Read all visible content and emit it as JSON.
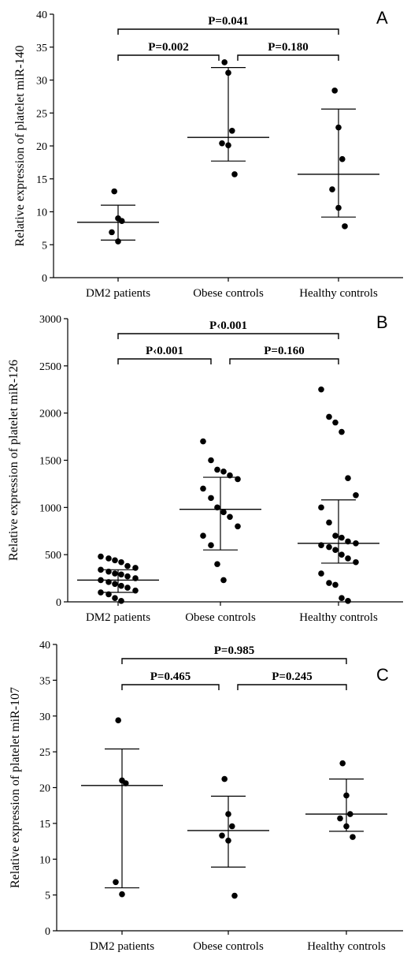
{
  "chart_data": [
    {
      "type": "scatter",
      "panel": "A",
      "ylabel": "Relative expression of platelet miR-140",
      "ylim": [
        0,
        40
      ],
      "yticks": [
        0,
        5,
        10,
        15,
        20,
        25,
        30,
        35,
        40
      ],
      "categories": [
        "DM2 patients",
        "Obese controls",
        "Healthy controls"
      ],
      "points": [
        [
          13.1,
          9.0,
          8.6,
          6.9,
          5.5
        ],
        [
          32.7,
          31.1,
          22.3,
          20.4,
          20.1,
          15.7
        ],
        [
          28.4,
          22.8,
          18.0,
          13.4,
          10.6,
          7.8
        ]
      ],
      "summary": [
        {
          "median": 8.4,
          "low": 5.7,
          "high": 11.0
        },
        {
          "median": 21.3,
          "low": 17.7,
          "high": 31.9
        },
        {
          "median": 15.7,
          "low": 9.2,
          "high": 25.6
        }
      ],
      "comparisons": [
        {
          "from": 0,
          "to": 1,
          "label": "P=0.002",
          "level": 1
        },
        {
          "from": 1,
          "to": 2,
          "label": "P=0.180",
          "level": 1
        },
        {
          "from": 0,
          "to": 2,
          "label": "P=0.041",
          "level": 2
        }
      ]
    },
    {
      "type": "scatter",
      "panel": "B",
      "ylabel": "Relative expression of platelet miR-126",
      "ylim": [
        0,
        3000
      ],
      "yticks": [
        0,
        500,
        1000,
        1500,
        2000,
        2500,
        3000
      ],
      "categories": [
        "DM2 patients",
        "Obese controls",
        "Healthy controls"
      ],
      "points": [
        [
          480,
          460,
          440,
          420,
          380,
          360,
          340,
          320,
          300,
          290,
          270,
          250,
          230,
          210,
          190,
          170,
          150,
          120,
          100,
          80,
          40,
          10
        ],
        [
          1700,
          1500,
          1400,
          1380,
          1340,
          1300,
          1200,
          1100,
          1000,
          950,
          900,
          800,
          700,
          600,
          400,
          230
        ],
        [
          2250,
          1960,
          1900,
          1800,
          1310,
          1130,
          1000,
          840,
          700,
          680,
          640,
          620,
          600,
          580,
          550,
          500,
          460,
          420,
          300,
          200,
          180,
          40,
          10
        ]
      ],
      "summary": [
        {
          "median": 230,
          "low": 100,
          "high": 340
        },
        {
          "median": 980,
          "low": 550,
          "high": 1320
        },
        {
          "median": 620,
          "low": 410,
          "high": 1080
        }
      ],
      "comparisons": [
        {
          "from": 0,
          "to": 1,
          "label": "P‹0.001",
          "level": 1
        },
        {
          "from": 1,
          "to": 2,
          "label": "P=0.160",
          "level": 1
        },
        {
          "from": 0,
          "to": 2,
          "label": "P‹0.001",
          "level": 2
        }
      ]
    },
    {
      "type": "scatter",
      "panel": "C",
      "ylabel": "Relative expression of platelet miR-107",
      "ylim": [
        0,
        40
      ],
      "yticks": [
        0,
        5,
        10,
        15,
        20,
        25,
        30,
        35,
        40
      ],
      "categories": [
        "DM2 patients",
        "Obese controls",
        "Healthy controls"
      ],
      "points": [
        [
          29.4,
          21.0,
          20.6,
          6.8,
          5.1
        ],
        [
          21.2,
          16.3,
          14.6,
          13.3,
          12.6,
          4.9
        ],
        [
          23.4,
          18.9,
          16.3,
          15.7,
          14.6,
          13.1
        ]
      ],
      "summary": [
        {
          "median": 20.3,
          "low": 6.0,
          "high": 25.4
        },
        {
          "median": 14.0,
          "low": 8.9,
          "high": 18.8
        },
        {
          "median": 16.3,
          "low": 13.9,
          "high": 21.2
        }
      ],
      "comparisons": [
        {
          "from": 0,
          "to": 1,
          "label": "P=0.465",
          "level": 1
        },
        {
          "from": 1,
          "to": 2,
          "label": "P=0.245",
          "level": 1
        },
        {
          "from": 0,
          "to": 2,
          "label": "P=0.985",
          "level": 2
        }
      ]
    }
  ]
}
